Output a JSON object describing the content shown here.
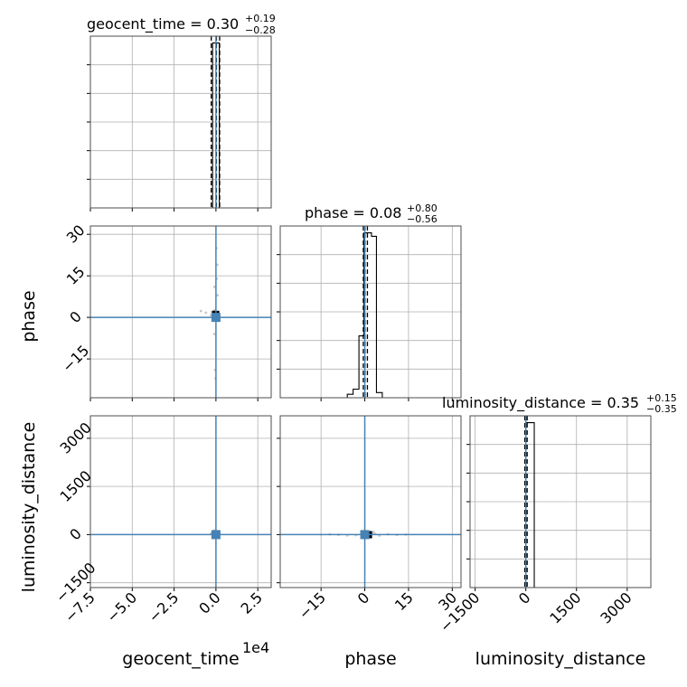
{
  "chart_data": {
    "type": "corner",
    "parameters": [
      "geocent_time",
      "phase",
      "luminosity_distance"
    ],
    "axis_labels": [
      "geocent_time",
      "phase",
      "luminosity_distance"
    ],
    "titles": [
      {
        "name": "geocent_time",
        "median": "0.30",
        "plus": "+0.19",
        "minus": "−0.28"
      },
      {
        "name": "phase",
        "median": "0.08",
        "plus": "+0.80",
        "minus": "−0.56"
      },
      {
        "name": "luminosity_distance",
        "median": "0.35",
        "plus": "+0.15",
        "minus": "−0.35"
      }
    ],
    "ranges": [
      [
        -75000,
        33000
      ],
      [
        -29,
        33
      ],
      [
        -1650,
        3700
      ]
    ],
    "ticks": [
      {
        "values": [
          -75000,
          -50000,
          -25000,
          0,
          25000
        ],
        "labels": [
          "−7.5",
          "−5.0",
          "−2.5",
          "0.0",
          "2.5"
        ],
        "offset_text": "1e4"
      },
      {
        "values": [
          -15,
          0,
          15,
          30
        ],
        "labels": [
          "−15",
          "0",
          "15",
          "30"
        ],
        "offset_text": ""
      },
      {
        "values": [
          -1500,
          0,
          1500,
          3000
        ],
        "labels": [
          "−1500",
          "0",
          "1500",
          "3000"
        ],
        "offset_text": ""
      }
    ],
    "truths": [
      0,
      0,
      0
    ],
    "histograms": [
      {
        "edges": [
          -4000,
          -2000,
          2000,
          4000
        ],
        "counts": [
          0,
          1.0,
          0
        ]
      },
      {
        "edges": [
          -6,
          -4,
          -2,
          -0.3,
          0.2,
          2.3,
          4,
          6
        ],
        "counts": [
          0.02,
          0.05,
          0.36,
          0.96,
          0.96,
          0.94,
          0.03
        ]
      },
      {
        "edges": [
          -50,
          0,
          250,
          260
        ],
        "counts": [
          0,
          1.0,
          0
        ]
      }
    ],
    "hist_peak": [
      [
        [
          -1500,
          0.9
        ]
      ],
      [
        [
          0.25,
          1.0
        ]
      ],
      [
        [
          0,
          0.9
        ]
      ]
    ],
    "quantile_lines": [
      [
        -2800,
        300,
        2200
      ],
      [
        -0.5,
        0.1,
        0.9
      ],
      [
        -30,
        10,
        40
      ]
    ],
    "scatter": {
      "1-0": [
        [
          -1800,
          2.1
        ],
        [
          -1200,
          1.4
        ],
        [
          -800,
          2.6
        ],
        [
          -1600,
          0.7
        ],
        [
          -500,
          1.2
        ],
        [
          -2500,
          1.9
        ],
        [
          -6000,
          1.7
        ],
        [
          -9000,
          2.3
        ],
        [
          -3000,
          0.8
        ],
        [
          1800,
          -0.5
        ],
        [
          500,
          14
        ],
        [
          800,
          19
        ],
        [
          -500,
          -19
        ],
        [
          -300,
          -22
        ],
        [
          1000,
          8
        ],
        [
          -1000,
          -6
        ],
        [
          300,
          25
        ],
        [
          -900,
          11
        ]
      ],
      "2-0": [
        [
          -1500,
          60
        ],
        [
          -900,
          40
        ],
        [
          -2000,
          90
        ],
        [
          -700,
          20
        ],
        [
          -300,
          70
        ],
        [
          -3000,
          35
        ],
        [
          1500,
          -40
        ],
        [
          -1200,
          120
        ]
      ],
      "2-1": [
        [
          1.5,
          60
        ],
        [
          2.5,
          40
        ],
        [
          3.5,
          20
        ],
        [
          -6,
          -25
        ],
        [
          -9,
          -5
        ],
        [
          -12,
          10
        ],
        [
          8,
          12
        ],
        [
          11,
          -10
        ],
        [
          5,
          -30
        ],
        [
          -3,
          -15
        ],
        [
          3,
          80
        ],
        [
          1,
          50
        ],
        [
          -15,
          0
        ],
        [
          14,
          5
        ]
      ]
    },
    "dense_blocks": {
      "1-0": [
        [
          -2300,
          0.6,
          1800,
          2.4
        ]
      ],
      "2-0": [
        [
          -2400,
          -20,
          2400,
          120
        ]
      ],
      "2-1": [
        [
          -0.3,
          -20,
          2.5,
          110
        ]
      ]
    },
    "truth_color": "#4682b4",
    "data_color": "#000000",
    "grid": true
  }
}
